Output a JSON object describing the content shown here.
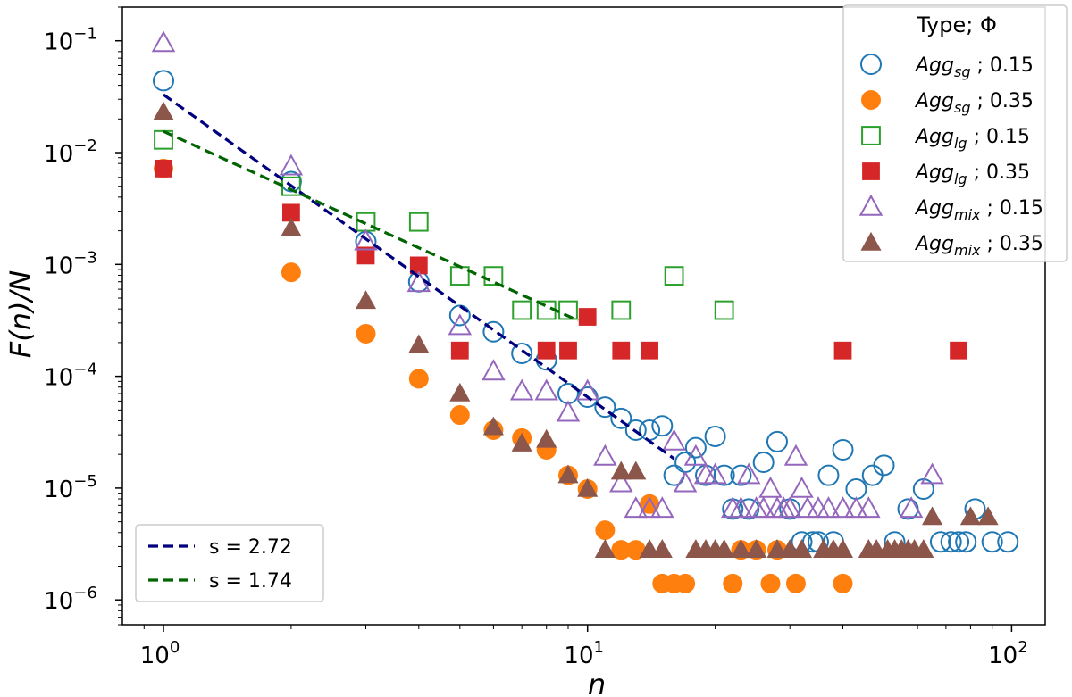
{
  "chart_data": {
    "type": "scatter",
    "xscale": "log",
    "yscale": "log",
    "xlim": [
      0.8,
      120
    ],
    "ylim": [
      6e-07,
      0.2
    ],
    "xlabel": "n",
    "ylabel": "F(n)/N",
    "x_ticks": [
      {
        "value": 1,
        "base": "10",
        "exp": "0"
      },
      {
        "value": 10,
        "base": "10",
        "exp": "1"
      },
      {
        "value": 100,
        "base": "10",
        "exp": "2"
      }
    ],
    "y_ticks": [
      {
        "value": 1e-06,
        "base": "10",
        "exp": "−6"
      },
      {
        "value": 1e-05,
        "base": "10",
        "exp": "−5"
      },
      {
        "value": 0.0001,
        "base": "10",
        "exp": "−4"
      },
      {
        "value": 0.001,
        "base": "10",
        "exp": "−3"
      },
      {
        "value": 0.01,
        "base": "10",
        "exp": "−2"
      },
      {
        "value": 0.1,
        "base": "10",
        "exp": "−1"
      }
    ],
    "legend_title": "Type; Φ",
    "legend_position": "top-right",
    "series": [
      {
        "name": "Agg_sg ; 0.15",
        "label_main": "Agg",
        "label_sub": "sg",
        "label_tail": " ; 0.15",
        "marker": "circle",
        "filled": false,
        "color": "#1f77b4",
        "points": [
          [
            1,
            0.044
          ],
          [
            2,
            0.0055
          ],
          [
            3,
            0.0016
          ],
          [
            4,
            0.0007
          ],
          [
            5,
            0.00035
          ],
          [
            6,
            0.00025
          ],
          [
            7,
            0.00016
          ],
          [
            8,
            0.00014
          ],
          [
            9,
            7e-05
          ],
          [
            10,
            6.5e-05
          ],
          [
            11,
            5.3e-05
          ],
          [
            12,
            4.2e-05
          ],
          [
            13,
            3.3e-05
          ],
          [
            14,
            3.3e-05
          ],
          [
            15,
            3.6e-05
          ],
          [
            16,
            1.3e-05
          ],
          [
            17,
            1.7e-05
          ],
          [
            18,
            2.3e-05
          ],
          [
            19,
            1.3e-05
          ],
          [
            20,
            2.9e-05
          ],
          [
            21,
            1.3e-05
          ],
          [
            22,
            6.5e-06
          ],
          [
            23,
            1.3e-05
          ],
          [
            24,
            6.5e-06
          ],
          [
            26,
            1.7e-05
          ],
          [
            28,
            2.6e-05
          ],
          [
            30,
            6.5e-06
          ],
          [
            32,
            3.3e-06
          ],
          [
            34,
            3.3e-06
          ],
          [
            35,
            3.3e-06
          ],
          [
            37,
            1.3e-05
          ],
          [
            38,
            3.3e-06
          ],
          [
            40,
            2.2e-05
          ],
          [
            43,
            9.8e-06
          ],
          [
            47,
            1.3e-05
          ],
          [
            50,
            1.6e-05
          ],
          [
            53,
            3.3e-06
          ],
          [
            57,
            6.5e-06
          ],
          [
            62,
            9.8e-06
          ],
          [
            68,
            3.3e-06
          ],
          [
            72,
            3.3e-06
          ],
          [
            75,
            3.3e-06
          ],
          [
            78,
            3.3e-06
          ],
          [
            82,
            6.5e-06
          ],
          [
            90,
            3.3e-06
          ],
          [
            98,
            3.3e-06
          ]
        ]
      },
      {
        "name": "Agg_sg ; 0.35",
        "label_main": "Agg",
        "label_sub": "sg",
        "label_tail": " ; 0.35",
        "marker": "circle",
        "filled": true,
        "color": "#ff7f0e",
        "points": [
          [
            1,
            0.0072
          ],
          [
            2,
            0.00085
          ],
          [
            3,
            0.00024
          ],
          [
            4,
            9.5e-05
          ],
          [
            5,
            4.5e-05
          ],
          [
            6,
            3.3e-05
          ],
          [
            7,
            2.8e-05
          ],
          [
            8,
            2.2e-05
          ],
          [
            9,
            1.3e-05
          ],
          [
            10,
            9.8e-06
          ],
          [
            11,
            4.2e-06
          ],
          [
            12,
            2.8e-06
          ],
          [
            13,
            2.8e-06
          ],
          [
            14,
            7.2e-06
          ],
          [
            15,
            1.4e-06
          ],
          [
            16,
            1.4e-06
          ],
          [
            17,
            1.4e-06
          ],
          [
            22,
            1.4e-06
          ],
          [
            23,
            2.8e-06
          ],
          [
            25,
            2.8e-06
          ],
          [
            27,
            1.4e-06
          ],
          [
            28,
            2.8e-06
          ],
          [
            31,
            1.4e-06
          ],
          [
            40,
            1.4e-06
          ]
        ]
      },
      {
        "name": "Agg_lg ; 0.15",
        "label_main": "Agg",
        "label_sub": "lg",
        "label_tail": " ; 0.15",
        "marker": "square",
        "filled": false,
        "color": "#2ca02c",
        "points": [
          [
            1,
            0.013
          ],
          [
            2,
            0.005
          ],
          [
            3,
            0.0024
          ],
          [
            4,
            0.0024
          ],
          [
            5,
            0.00079
          ],
          [
            6,
            0.00079
          ],
          [
            7,
            0.00039
          ],
          [
            8,
            0.00039
          ],
          [
            9,
            0.00039
          ],
          [
            12,
            0.00039
          ],
          [
            16,
            0.00079
          ],
          [
            21,
            0.00039
          ]
        ]
      },
      {
        "name": "Agg_lg ; 0.35",
        "label_main": "Agg",
        "label_sub": "lg",
        "label_tail": " ; 0.35",
        "marker": "square",
        "filled": true,
        "color": "#d62728",
        "points": [
          [
            1,
            0.0072
          ],
          [
            2,
            0.0029
          ],
          [
            3,
            0.0012
          ],
          [
            4,
            0.00098
          ],
          [
            5,
            0.00017
          ],
          [
            8,
            0.00017
          ],
          [
            9,
            0.00017
          ],
          [
            10,
            0.00034
          ],
          [
            12,
            0.00017
          ],
          [
            14,
            0.00017
          ],
          [
            40,
            0.00017
          ],
          [
            75,
            0.00017
          ]
        ]
      },
      {
        "name": "Agg_mix ; 0.15",
        "label_main": "Agg",
        "label_sub": "mix",
        "label_tail": " ; 0.15",
        "marker": "triangle",
        "filled": false,
        "color": "#9467bd",
        "points": [
          [
            1,
            0.095
          ],
          [
            2,
            0.0075
          ],
          [
            3,
            0.0016
          ],
          [
            4,
            0.00068
          ],
          [
            5,
            0.00028
          ],
          [
            6,
            0.00011
          ],
          [
            7,
            7.3e-05
          ],
          [
            8,
            7.3e-05
          ],
          [
            9,
            4.7e-05
          ],
          [
            10,
            7.3e-05
          ],
          [
            11,
            1.9e-05
          ],
          [
            12,
            1.1e-05
          ],
          [
            13,
            6.5e-06
          ],
          [
            14,
            6.5e-06
          ],
          [
            15,
            6.5e-06
          ],
          [
            16,
            2.6e-05
          ],
          [
            17,
            1.1e-05
          ],
          [
            18,
            1.9e-05
          ],
          [
            19,
            1.3e-05
          ],
          [
            20,
            1.3e-05
          ],
          [
            22,
            6.5e-06
          ],
          [
            23,
            6.5e-06
          ],
          [
            24,
            1.3e-05
          ],
          [
            25,
            6.5e-06
          ],
          [
            26,
            6.5e-06
          ],
          [
            27,
            9.8e-06
          ],
          [
            28,
            6.5e-06
          ],
          [
            29,
            6.5e-06
          ],
          [
            30,
            6.5e-06
          ],
          [
            31,
            1.9e-05
          ],
          [
            32,
            9.8e-06
          ],
          [
            33,
            6.5e-06
          ],
          [
            35,
            6.5e-06
          ],
          [
            37,
            6.5e-06
          ],
          [
            40,
            6.5e-06
          ],
          [
            43,
            6.5e-06
          ],
          [
            46,
            6.5e-06
          ],
          [
            58,
            6.5e-06
          ],
          [
            65,
            1.3e-05
          ]
        ]
      },
      {
        "name": "Agg_mix ; 0.35",
        "label_main": "Agg",
        "label_sub": "mix",
        "label_tail": " ; 0.35",
        "marker": "triangle",
        "filled": true,
        "color": "#8c564b",
        "points": [
          [
            1,
            0.023
          ],
          [
            2,
            0.0021
          ],
          [
            3,
            0.00047
          ],
          [
            4,
            0.00019
          ],
          [
            5,
            7e-05
          ],
          [
            6,
            3.5e-05
          ],
          [
            7,
            2.5e-05
          ],
          [
            8,
            2.7e-05
          ],
          [
            9,
            1.3e-05
          ],
          [
            10,
            9.8e-06
          ],
          [
            11,
            2.8e-06
          ],
          [
            12,
            1.4e-05
          ],
          [
            13,
            1.4e-05
          ],
          [
            14,
            2.8e-06
          ],
          [
            15,
            2.8e-06
          ],
          [
            18,
            2.8e-06
          ],
          [
            19,
            2.8e-06
          ],
          [
            20,
            2.8e-06
          ],
          [
            21,
            2.8e-06
          ],
          [
            23,
            2.8e-06
          ],
          [
            25,
            2.8e-06
          ],
          [
            28,
            2.8e-06
          ],
          [
            30,
            2.8e-06
          ],
          [
            32,
            2.8e-06
          ],
          [
            36,
            2.8e-06
          ],
          [
            38,
            2.8e-06
          ],
          [
            40,
            2.8e-06
          ],
          [
            46,
            2.8e-06
          ],
          [
            48,
            2.8e-06
          ],
          [
            51,
            2.8e-06
          ],
          [
            53,
            2.8e-06
          ],
          [
            55,
            2.8e-06
          ],
          [
            57,
            2.8e-06
          ],
          [
            59,
            2.8e-06
          ],
          [
            62,
            2.8e-06
          ],
          [
            65,
            5.5e-06
          ],
          [
            80,
            5.5e-06
          ],
          [
            88,
            5.5e-06
          ]
        ]
      }
    ],
    "fit_lines": [
      {
        "name": "s = 2.72",
        "color": "#00007f",
        "x": [
          1,
          16
        ],
        "y": [
          0.033,
          1.83e-05
        ]
      },
      {
        "name": "s = 1.74",
        "color": "#006400",
        "x": [
          1,
          9.5
        ],
        "y": [
          0.0155,
          0.000315
        ]
      }
    ]
  }
}
